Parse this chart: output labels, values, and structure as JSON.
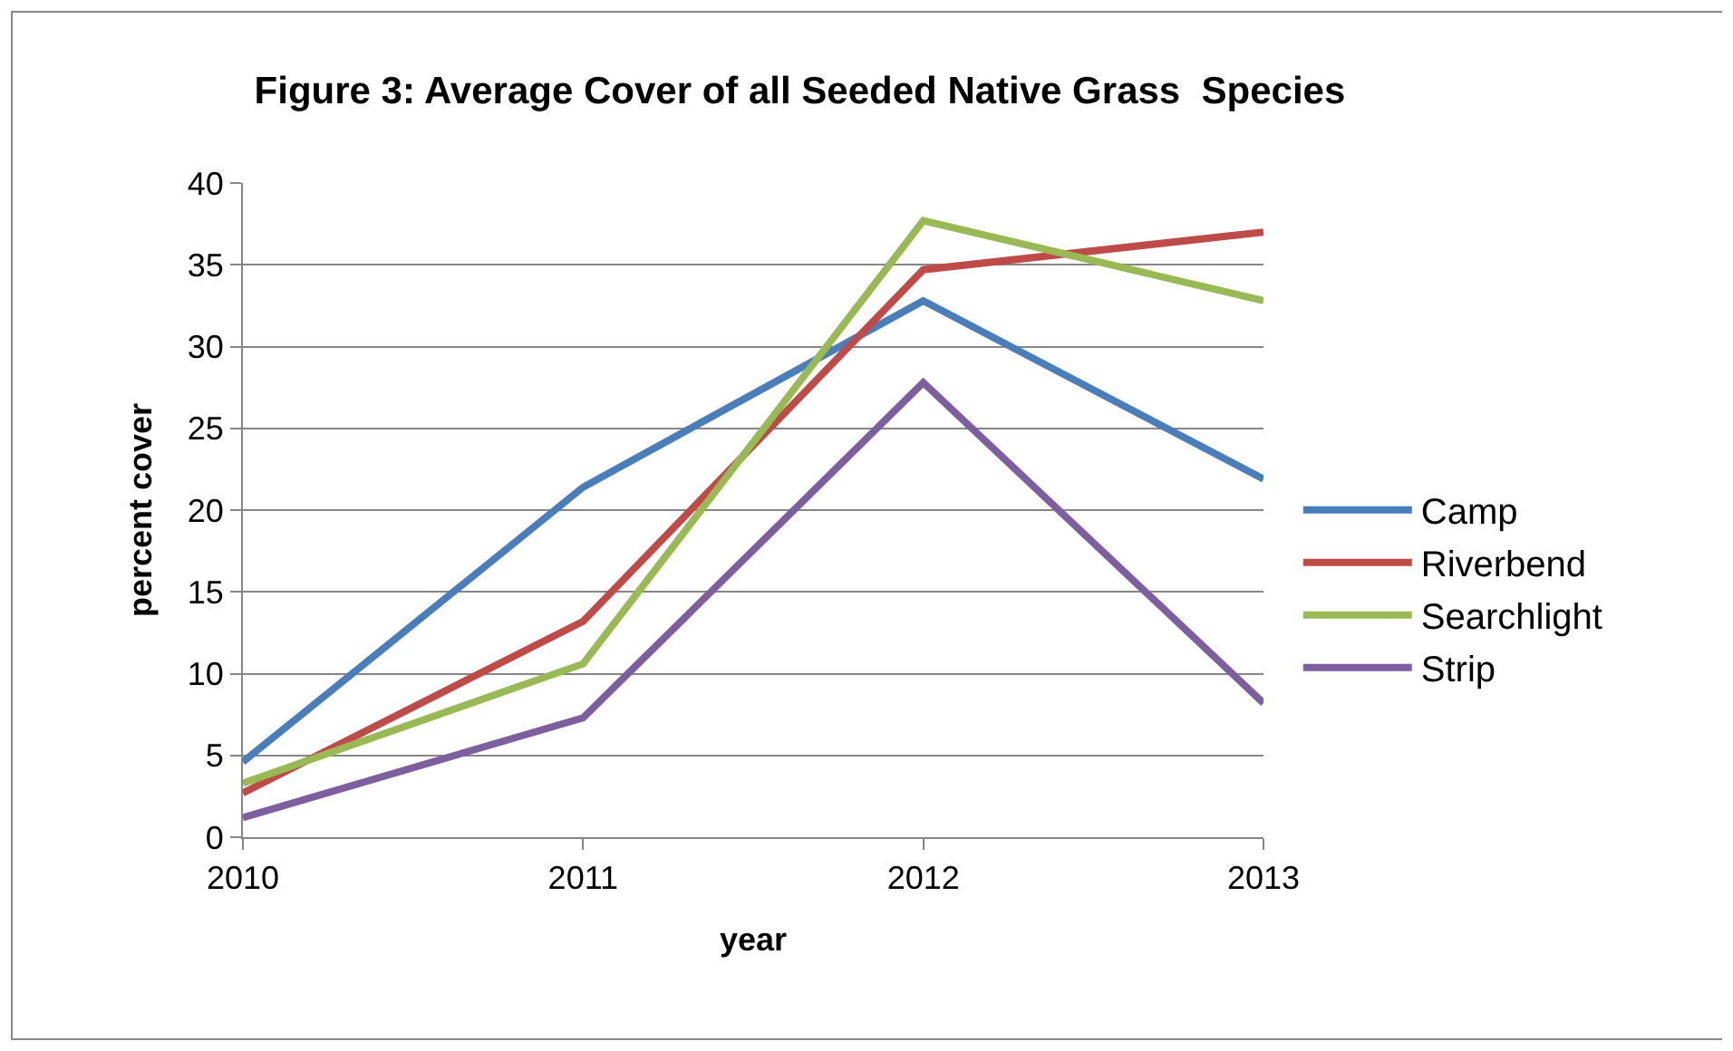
{
  "chart_data": {
    "type": "line",
    "title": "Figure 3: Average Cover of all Seeded Native Grass  Species",
    "xlabel": "year",
    "ylabel": "percent cover",
    "x": [
      2010,
      2011,
      2012,
      2013
    ],
    "series": [
      {
        "name": "Camp",
        "color": "#4a7ebb",
        "values": [
          4.6,
          21.4,
          32.8,
          21.9
        ]
      },
      {
        "name": "Riverbend",
        "color": "#be4b48",
        "values": [
          2.7,
          13.2,
          34.7,
          37.0
        ]
      },
      {
        "name": "Searchlight",
        "color": "#98b954",
        "values": [
          3.3,
          10.6,
          37.7,
          32.8
        ]
      },
      {
        "name": "Strip",
        "color": "#7d5fa0",
        "values": [
          1.2,
          7.3,
          27.8,
          8.2
        ]
      }
    ],
    "xlim": [
      2010,
      2013
    ],
    "xticks": [
      2010,
      2011,
      2012,
      2013
    ],
    "ylim": [
      0,
      40
    ],
    "yticks": [
      0,
      5,
      10,
      15,
      20,
      25,
      30,
      35,
      40
    ],
    "grid": "y",
    "legend": "right",
    "marker": "none",
    "line_style": "solid"
  }
}
